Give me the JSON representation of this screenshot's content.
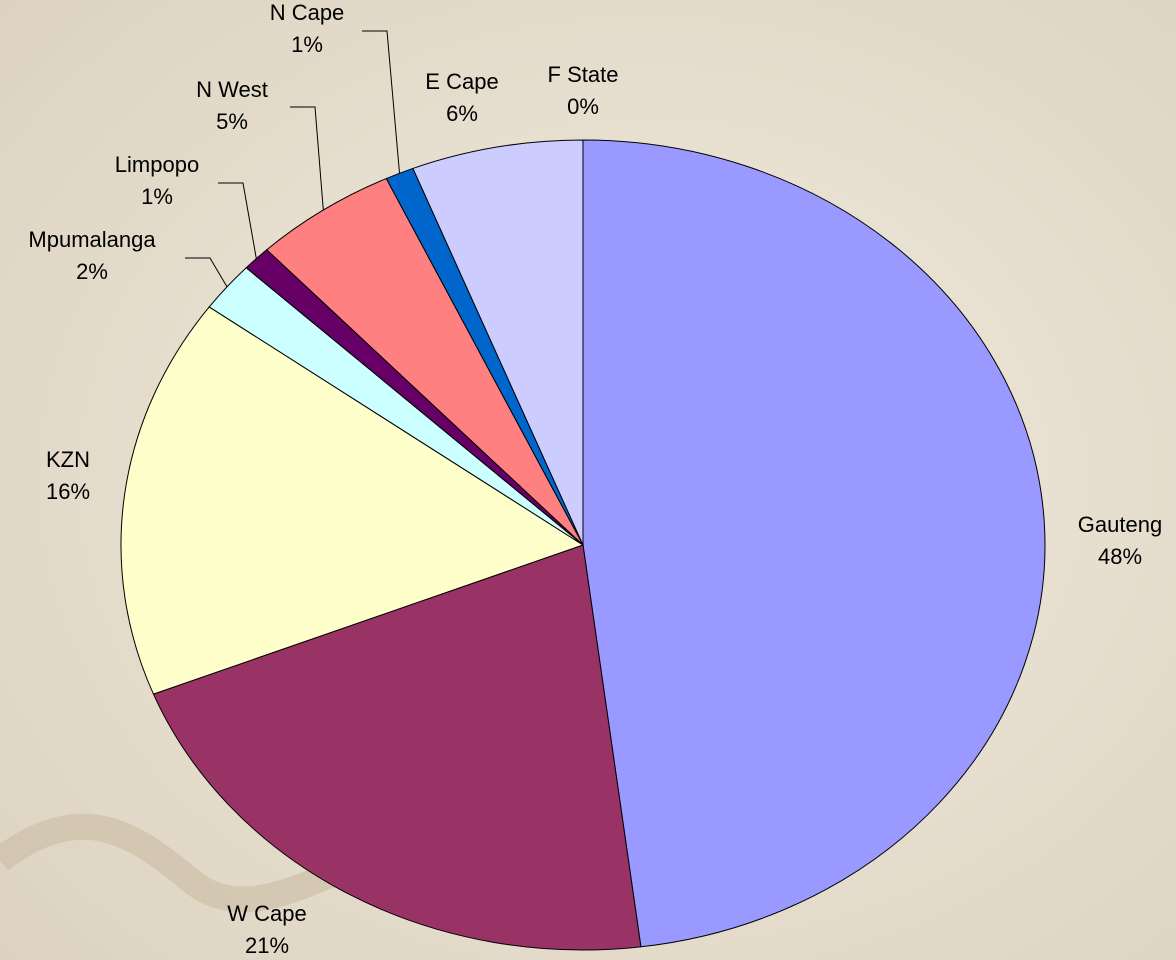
{
  "chart_data": {
    "type": "pie",
    "categories": [
      "Gauteng",
      "W Cape",
      "KZN",
      "Mpumalanga",
      "Limpopo",
      "N West",
      "N Cape",
      "E Cape",
      "F State"
    ],
    "values": [
      48,
      21,
      16,
      2,
      1,
      5,
      1,
      6,
      0
    ],
    "value_labels": [
      "48%",
      "21%",
      "16%",
      "2%",
      "1%",
      "5%",
      "1%",
      "6%",
      "0%"
    ],
    "colors": [
      "#9999ff",
      "#993366",
      "#ffffcc",
      "#ccffff",
      "#660066",
      "#ff8080",
      "#0066cc",
      "#ccccff",
      "#ffffff"
    ]
  }
}
